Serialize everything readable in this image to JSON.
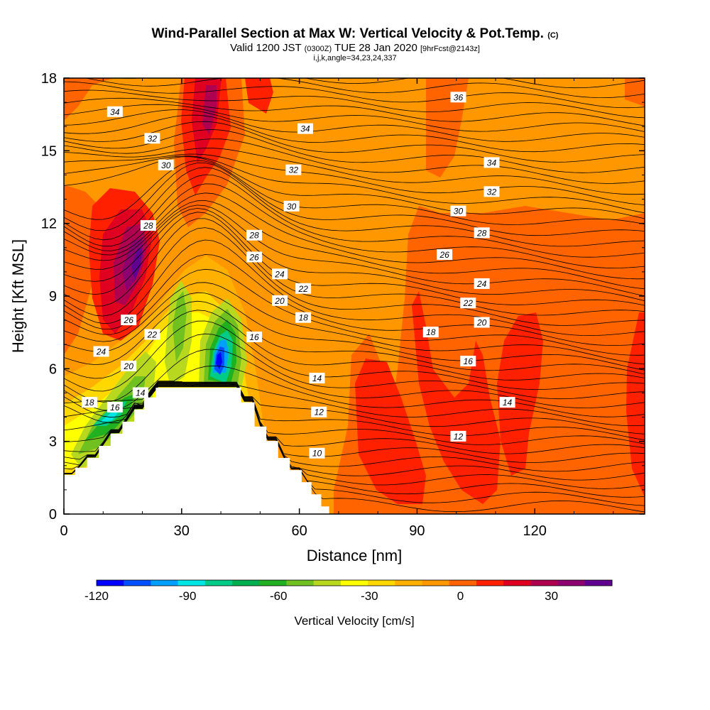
{
  "header": {
    "title": "Wind-Parallel Section at Max W: Vertical Velocity & Pot.Temp.",
    "title_unit": "(C)",
    "valid_prefix": "Valid 1200 JST",
    "valid_z": "(0300Z)",
    "valid_date": "TUE 28 Jan 2020",
    "forecast": "[9hrFcst@2143z]",
    "indices": "i,j,k,angle=34,23,24,337"
  },
  "chart_data": {
    "type": "heatmap",
    "xlabel": "Distance [nm]",
    "ylabel": "Height [Kft MSL]",
    "xlim": [
      0,
      148
    ],
    "ylim": [
      0,
      18
    ],
    "x_ticks": [
      0,
      30,
      60,
      90,
      120
    ],
    "x_tick_labels": [
      "0",
      "30",
      "60",
      "90",
      "120"
    ],
    "y_ticks": [
      0,
      3,
      6,
      9,
      12,
      15,
      18
    ],
    "y_tick_labels": [
      "0",
      "3",
      "6",
      "9",
      "12",
      "15",
      "18"
    ],
    "colorbar": {
      "title": "Vertical Velocity [cm/s]",
      "range": [
        -120,
        50
      ],
      "step": 10,
      "tick_values": [
        -120,
        -90,
        -60,
        -30,
        0,
        30
      ],
      "tick_labels": [
        "-120",
        "-90",
        "-60",
        "-30",
        "0",
        "30"
      ],
      "colors": [
        "#0000ff",
        "#0050ff",
        "#00a0ff",
        "#00e5e5",
        "#00cc88",
        "#00b050",
        "#20b020",
        "#70c020",
        "#b8d820",
        "#ffff00",
        "#ffd800",
        "#ffb000",
        "#ff9800",
        "#ff6400",
        "#ff2000",
        "#e00020",
        "#b00050",
        "#8c0070",
        "#600090"
      ]
    },
    "contour_field": "Pot.Temp.",
    "contour_labels": [
      {
        "value": "34",
        "x": 13,
        "y": 16.6
      },
      {
        "value": "32",
        "x": 22.5,
        "y": 15.5
      },
      {
        "value": "30",
        "x": 26,
        "y": 14.4
      },
      {
        "value": "28",
        "x": 21.5,
        "y": 11.9
      },
      {
        "value": "26",
        "x": 16.5,
        "y": 8.0
      },
      {
        "value": "24",
        "x": 9.5,
        "y": 6.7
      },
      {
        "value": "22",
        "x": 22.5,
        "y": 7.4
      },
      {
        "value": "20",
        "x": 16.5,
        "y": 6.1
      },
      {
        "value": "18",
        "x": 6.5,
        "y": 4.6
      },
      {
        "value": "16",
        "x": 13,
        "y": 4.4
      },
      {
        "value": "14",
        "x": 19.5,
        "y": 5.0
      },
      {
        "value": "34",
        "x": 61.5,
        "y": 15.9
      },
      {
        "value": "32",
        "x": 58.5,
        "y": 14.2
      },
      {
        "value": "30",
        "x": 58,
        "y": 12.7
      },
      {
        "value": "28",
        "x": 48.5,
        "y": 11.5
      },
      {
        "value": "26",
        "x": 48.5,
        "y": 10.6
      },
      {
        "value": "24",
        "x": 55,
        "y": 9.9
      },
      {
        "value": "22",
        "x": 61,
        "y": 9.3
      },
      {
        "value": "20",
        "x": 55,
        "y": 8.8
      },
      {
        "value": "18",
        "x": 61,
        "y": 8.1
      },
      {
        "value": "16",
        "x": 48.5,
        "y": 7.3
      },
      {
        "value": "14",
        "x": 64.5,
        "y": 5.6
      },
      {
        "value": "12",
        "x": 65,
        "y": 4.2
      },
      {
        "value": "10",
        "x": 64.5,
        "y": 2.5
      },
      {
        "value": "36",
        "x": 100.5,
        "y": 17.2
      },
      {
        "value": "34",
        "x": 109,
        "y": 14.5
      },
      {
        "value": "32",
        "x": 109,
        "y": 13.3
      },
      {
        "value": "30",
        "x": 100.5,
        "y": 12.5
      },
      {
        "value": "28",
        "x": 106.5,
        "y": 11.6
      },
      {
        "value": "26",
        "x": 97,
        "y": 10.7
      },
      {
        "value": "24",
        "x": 106.5,
        "y": 9.5
      },
      {
        "value": "22",
        "x": 103,
        "y": 8.7
      },
      {
        "value": "20",
        "x": 106.5,
        "y": 7.9
      },
      {
        "value": "18",
        "x": 93.5,
        "y": 7.5
      },
      {
        "value": "16",
        "x": 103,
        "y": 6.3
      },
      {
        "value": "14",
        "x": 113,
        "y": 4.6
      },
      {
        "value": "12",
        "x": 100.5,
        "y": 3.2
      }
    ],
    "terrain_profile": [
      [
        0,
        1.6
      ],
      [
        3,
        1.6
      ],
      [
        3,
        1.9
      ],
      [
        6,
        1.9
      ],
      [
        6,
        2.3
      ],
      [
        9,
        2.3
      ],
      [
        9,
        2.8
      ],
      [
        12,
        2.8
      ],
      [
        12,
        3.3
      ],
      [
        15,
        3.3
      ],
      [
        15,
        3.8
      ],
      [
        18,
        3.8
      ],
      [
        18,
        4.3
      ],
      [
        20.5,
        4.3
      ],
      [
        20.5,
        4.8
      ],
      [
        23.5,
        4.8
      ],
      [
        23.5,
        5.2
      ],
      [
        45,
        5.2
      ],
      [
        45,
        4.6
      ],
      [
        48.5,
        4.6
      ],
      [
        48.5,
        3.6
      ],
      [
        51.5,
        3.6
      ],
      [
        51.5,
        3.0
      ],
      [
        54.5,
        3.0
      ],
      [
        54.5,
        2.3
      ],
      [
        57.5,
        2.3
      ],
      [
        57.5,
        1.8
      ],
      [
        60.5,
        1.8
      ],
      [
        60.5,
        1.3
      ],
      [
        63,
        1.3
      ],
      [
        63,
        0.8
      ],
      [
        65.5,
        0.8
      ],
      [
        65.5,
        0.3
      ],
      [
        67.5,
        0.3
      ],
      [
        67.5,
        0
      ]
    ]
  }
}
